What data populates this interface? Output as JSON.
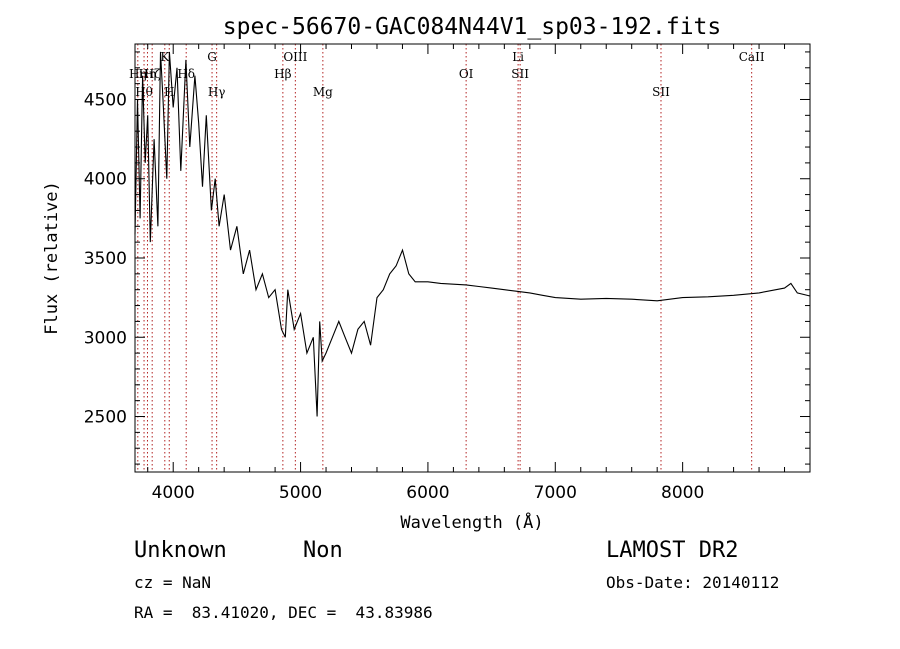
{
  "chart_data": {
    "type": "line",
    "title": "spec-56670-GAC084N44V1_sp03-192.fits",
    "xlabel": "Wavelength (Å)",
    "ylabel": "Flux (relative)",
    "xlim": [
      3700,
      9000
    ],
    "ylim": [
      2150,
      4850
    ],
    "xticks": [
      4000,
      5000,
      6000,
      7000,
      8000
    ],
    "yticks": [
      2500,
      3000,
      3500,
      4000,
      4500
    ],
    "grid": false,
    "series": [
      {
        "x": [
          3700,
          3720,
          3740,
          3760,
          3780,
          3800,
          3820,
          3850,
          3880,
          3900,
          3920,
          3950,
          3970,
          4000,
          4030,
          4060,
          4100,
          4130,
          4170,
          4200,
          4230,
          4260,
          4300,
          4330,
          4360,
          4400,
          4450,
          4500,
          4550,
          4600,
          4650,
          4700,
          4750,
          4800,
          4850,
          4880,
          4900,
          4950,
          5000,
          5050,
          5100,
          5130,
          5150,
          5170,
          5200,
          5250,
          5300,
          5350,
          5400,
          5450,
          5500,
          5550,
          5600,
          5650,
          5700,
          5750,
          5800,
          5850,
          5900,
          6000,
          6100,
          6200,
          6300,
          6400,
          6500,
          6600,
          6700,
          6800,
          6900,
          7000,
          7200,
          7400,
          7600,
          7800,
          8000,
          8200,
          8400,
          8600,
          8800,
          8850,
          8900,
          9000
        ],
        "y": [
          3650,
          4500,
          3750,
          4650,
          4100,
          4400,
          3600,
          4250,
          3700,
          4800,
          4500,
          4000,
          4800,
          4450,
          4700,
          4050,
          4750,
          4200,
          4650,
          4350,
          3950,
          4400,
          3800,
          4000,
          3700,
          3900,
          3550,
          3700,
          3400,
          3550,
          3300,
          3400,
          3250,
          3300,
          3050,
          3000,
          3300,
          3050,
          3150,
          2900,
          3000,
          2500,
          3100,
          2850,
          2900,
          3000,
          3100,
          3000,
          2900,
          3050,
          3100,
          2950,
          3250,
          3300,
          3400,
          3450,
          3550,
          3400,
          3350,
          3350,
          3340,
          3335,
          3330,
          3320,
          3310,
          3300,
          3290,
          3280,
          3265,
          3250,
          3240,
          3245,
          3240,
          3230,
          3250,
          3255,
          3265,
          3280,
          3310,
          3340,
          3280,
          3260
        ]
      }
    ],
    "lines": [
      {
        "x": 3722,
        "label": "Hη",
        "row": 1
      },
      {
        "x": 3771,
        "label": "Hθ",
        "row": 3
      },
      {
        "x": 3798,
        "label": "Hη",
        "row": 2
      },
      {
        "x": 3835,
        "label": "Hζ",
        "row": 2
      },
      {
        "x": 3934,
        "label": "K",
        "row": 0
      },
      {
        "x": 3969,
        "label": "H",
        "row": 3
      },
      {
        "x": 4102,
        "label": "Hδ",
        "row": 2
      },
      {
        "x": 4305,
        "label": "G",
        "row": 0
      },
      {
        "x": 4341,
        "label": "Hγ",
        "row": 3
      },
      {
        "x": 4861,
        "label": "Hβ",
        "row": 2
      },
      {
        "x": 4959,
        "label": "OIII",
        "row": 0
      },
      {
        "x": 5175,
        "label": "Mg",
        "row": 3
      },
      {
        "x": 6300,
        "label": "OI",
        "row": 2
      },
      {
        "x": 6708,
        "label": "Li",
        "row": 0
      },
      {
        "x": 6724,
        "label": "SII",
        "row": 2
      },
      {
        "x": 7830,
        "label": "SII",
        "row": 3
      },
      {
        "x": 8542,
        "label": "CaII",
        "row": 0
      }
    ]
  },
  "info": {
    "class": "Unknown",
    "subclass": "Non",
    "cz": "cz = NaN",
    "coords": "RA =  83.41020, DEC =  43.83986",
    "survey": "LAMOST DR2",
    "obs_date": "Obs-Date: 20140112"
  }
}
